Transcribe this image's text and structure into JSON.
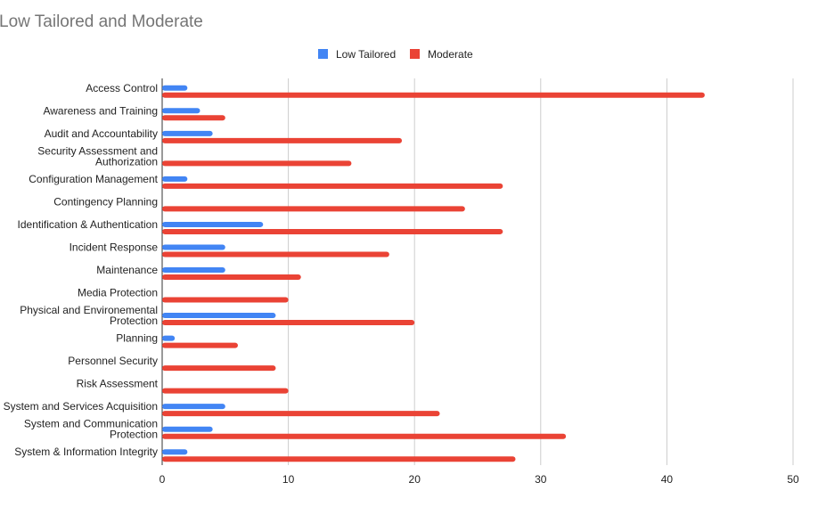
{
  "chart_data": {
    "type": "bar",
    "orientation": "horizontal",
    "title": "Low Tailored and Moderate",
    "xlabel": "",
    "ylabel": "",
    "xlim": [
      0,
      50
    ],
    "xticks": [
      0,
      10,
      20,
      30,
      40,
      50
    ],
    "grid": true,
    "legend_position": "top",
    "categories": [
      "Access Control",
      "Awareness and Training",
      "Audit and Accountability",
      "Security Assessment and Authorization",
      "Configuration Management",
      "Contingency Planning",
      "Identification & Authentication",
      "Incident Response",
      "Maintenance",
      "Media Protection",
      "Physical and Environemental Protection",
      "Planning",
      "Personnel Security",
      "Risk Assessment",
      "System and Services Acquisition",
      "System and Communication Protection",
      "System & Information Integrity"
    ],
    "series": [
      {
        "name": "Low Tailored",
        "color": "#4285F4",
        "values": [
          2,
          3,
          4,
          0,
          2,
          0,
          8,
          5,
          5,
          0,
          9,
          1,
          0,
          0,
          5,
          4,
          2
        ]
      },
      {
        "name": "Moderate",
        "color": "#EA4335",
        "values": [
          43,
          5,
          19,
          15,
          27,
          24,
          27,
          18,
          11,
          10,
          20,
          6,
          9,
          10,
          22,
          32,
          28
        ]
      }
    ]
  }
}
